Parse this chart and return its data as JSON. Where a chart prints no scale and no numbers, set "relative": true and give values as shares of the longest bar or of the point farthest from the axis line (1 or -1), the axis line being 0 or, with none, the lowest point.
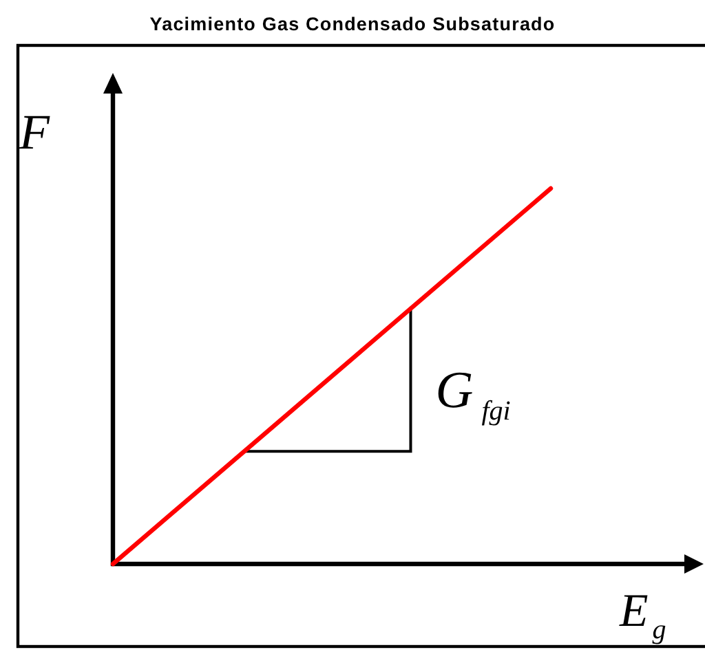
{
  "chart_data": {
    "type": "line",
    "title": "Yacimiento Gas Condensado Subsaturado",
    "xlabel": "E$_{g}$",
    "ylabel": "F",
    "categories": [
      null,
      null
    ],
    "relative": true,
    "series": [
      {
        "color": "#ff0000",
        "values": [
          0,
          1
        ]
      }
    ],
    "annotations": [
      "G$_{fgi}$"
    ],
    "marker": "none",
    "line_style": "solid"
  }
}
